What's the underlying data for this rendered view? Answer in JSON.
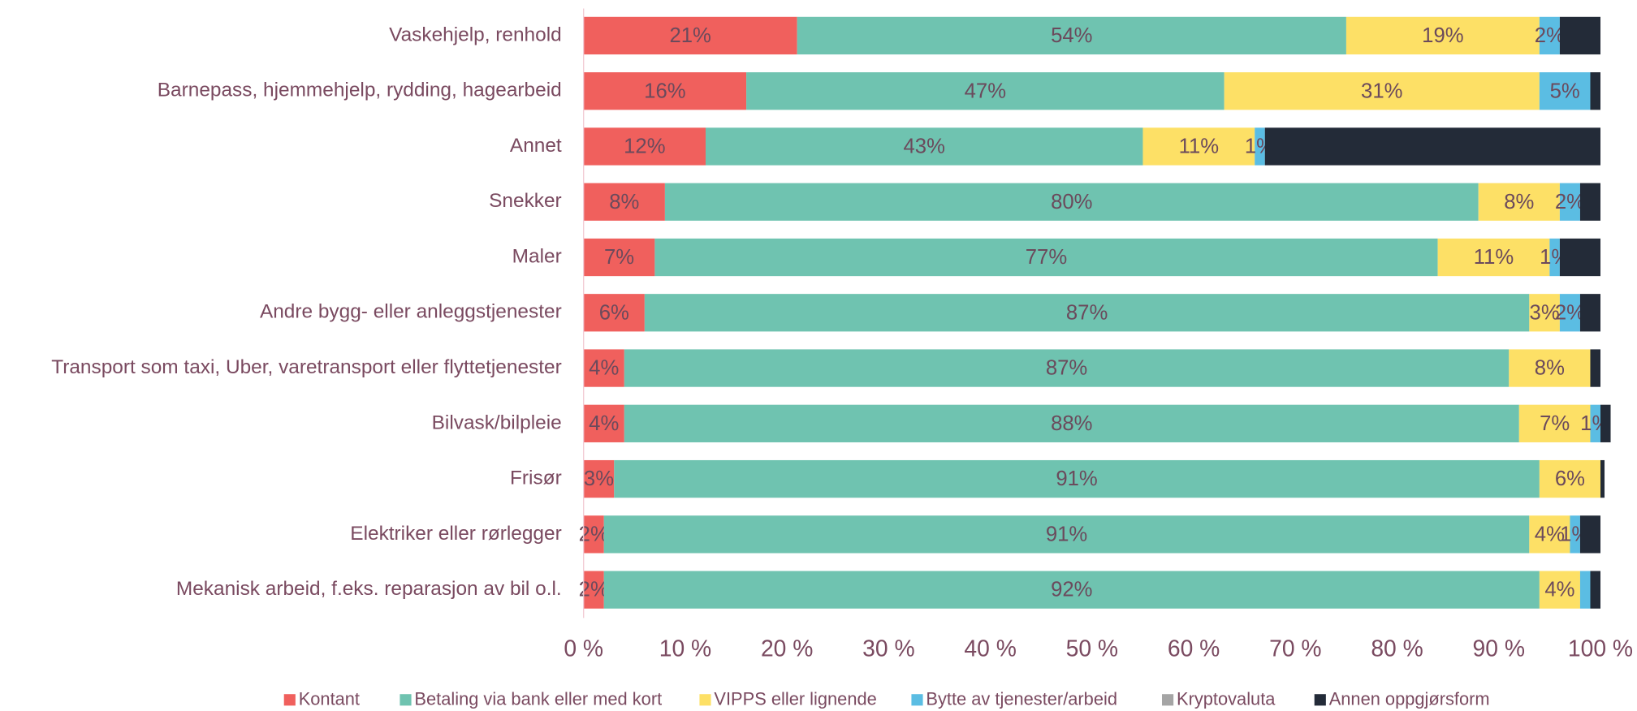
{
  "chart_data": {
    "type": "stacked-bar-horizontal",
    "categories": [
      "Vaskehjelp, renhold",
      "Barnepass, hjemmehjelp, rydding, hagearbeid",
      "Annet",
      "Snekker",
      "Maler",
      "Andre bygg- eller anleggstjenester",
      "Transport som taxi, Uber, varetransport eller flyttetjenester",
      "Bilvask/bilpleie",
      "Frisør",
      "Elektriker eller rørlegger",
      "Mekanisk arbeid, f.eks. reparasjon av bil o.l."
    ],
    "series": [
      {
        "name": "Kontant",
        "color": "#f0605d",
        "values": [
          21,
          16,
          12,
          8,
          7,
          6,
          4,
          4,
          3,
          2,
          2
        ],
        "value_labels": [
          "21%",
          "16%",
          "12%",
          "8%",
          "7%",
          "6%",
          "4%",
          "4%",
          "3%",
          "2%",
          "2%"
        ]
      },
      {
        "name": "Betaling via bank eller med kort",
        "color": "#6fc3b0",
        "values": [
          54,
          47,
          43,
          80,
          77,
          87,
          87,
          88,
          91,
          91,
          92
        ],
        "value_labels": [
          "54%",
          "47%",
          "43%",
          "80%",
          "77%",
          "87%",
          "87%",
          "88%",
          "91%",
          "91%",
          "92%"
        ]
      },
      {
        "name": "VIPPS eller lignende",
        "color": "#fde066",
        "values": [
          19,
          31,
          11,
          8,
          11,
          3,
          8,
          7,
          6,
          4,
          4
        ],
        "value_labels": [
          "19%",
          "31%",
          "11%",
          "8%",
          "11%",
          "3%",
          "8%",
          "7%",
          "6%",
          "4%",
          "4%"
        ]
      },
      {
        "name": "Bytte av tjenester/arbeid",
        "color": "#5bbde3",
        "values": [
          2,
          5,
          1,
          2,
          1,
          2,
          0,
          1,
          0,
          1,
          1
        ],
        "value_labels": [
          "2%",
          "5%",
          "1%",
          "2%",
          "1%",
          "2%",
          null,
          "1%",
          null,
          "1%",
          null
        ]
      },
      {
        "name": "Kryptovaluta",
        "color": "#a5a5a5",
        "values": [
          0,
          0,
          0,
          0,
          0,
          0,
          0,
          0,
          0,
          0,
          0
        ]
      },
      {
        "name": "Annen oppgjørsform",
        "color": "#232b38",
        "values": [
          4,
          1,
          33,
          2,
          4,
          2,
          1,
          1,
          0.4,
          2,
          1
        ]
      }
    ],
    "xlim": [
      0,
      100
    ],
    "xticks": [
      {
        "value": 0,
        "label": "0 %"
      },
      {
        "value": 10,
        "label": "10 %"
      },
      {
        "value": 20,
        "label": "20 %"
      },
      {
        "value": 30,
        "label": "30 %"
      },
      {
        "value": 40,
        "label": "40 %"
      },
      {
        "value": 50,
        "label": "50 %"
      },
      {
        "value": 60,
        "label": "60 %"
      },
      {
        "value": 70,
        "label": "70 %"
      },
      {
        "value": 80,
        "label": "80 %"
      },
      {
        "value": 90,
        "label": "90 %"
      },
      {
        "value": 100,
        "label": "100 %"
      }
    ],
    "legend": "bottom"
  }
}
